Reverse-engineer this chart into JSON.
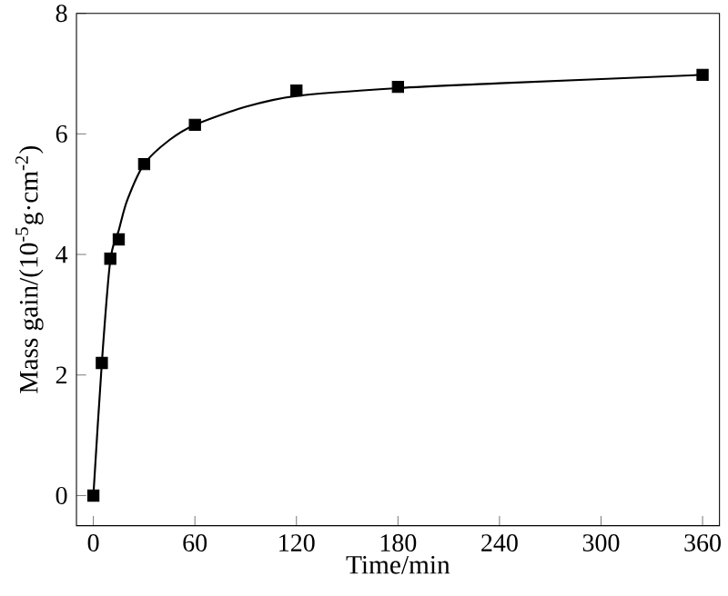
{
  "chart_data": {
    "type": "scatter",
    "xlabel": "Time/min",
    "ylabel": "Mass gain/(10$^{-5}$g·cm$^{-2}$)",
    "xlim": [
      -10,
      370
    ],
    "ylim": [
      -0.5,
      8
    ],
    "xticks": [
      0,
      60,
      120,
      180,
      240,
      300,
      360
    ],
    "yticks": [
      0,
      2,
      4,
      6,
      8
    ],
    "grid": false,
    "series": [
      {
        "color": "#000000",
        "marker": "square",
        "x": [
          0,
          5,
          10,
          15,
          30,
          60,
          120,
          180,
          360
        ],
        "values": [
          0,
          2.2,
          3.93,
          4.25,
          5.5,
          6.15,
          6.72,
          6.78,
          6.98
        ]
      },
      {
        "type": "line",
        "color": "#000000",
        "marker": "none",
        "line_style": "solid",
        "x": [
          0,
          5,
          10,
          15,
          20,
          30,
          45,
          60,
          90,
          120,
          180,
          240,
          360
        ],
        "values": [
          0,
          2.2,
          3.9,
          4.4,
          4.9,
          5.5,
          5.9,
          6.15,
          6.45,
          6.63,
          6.76,
          6.84,
          6.98
        ]
      }
    ]
  }
}
